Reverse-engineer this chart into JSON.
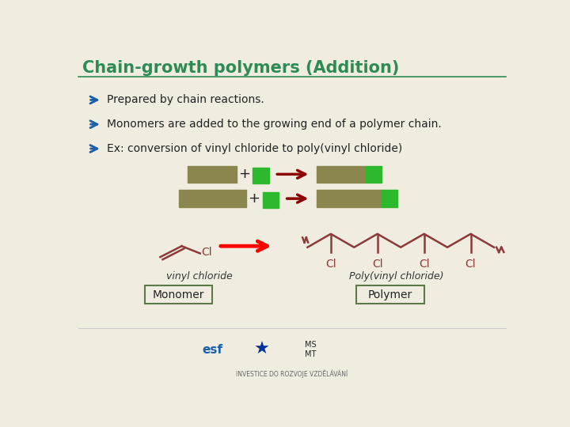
{
  "title": "Chain-growth polymers (Addition)",
  "title_color": "#2e8b57",
  "title_fontsize": 15,
  "bg_color": "#f0ede0",
  "bullet_color": "#1a5fa8",
  "arrow_color": "#8b0000",
  "green_color": "#2db82d",
  "tan_color": "#8b864e",
  "bullet1": "Prepared by chain reactions.",
  "bullet2": "Monomers are added to the growing end of a polymer chain.",
  "bullet3": "Ex: conversion of vinyl chloride to poly(vinyl chloride)",
  "monomer_label": "vinyl chloride",
  "polymer_label": "Poly(vinyl chloride)",
  "monomer_box": "Monomer",
  "polymer_box": "Polymer",
  "chem_color": "#8b3a3a",
  "border_color": "#5a7a4a",
  "line_color": "#2e8b57"
}
